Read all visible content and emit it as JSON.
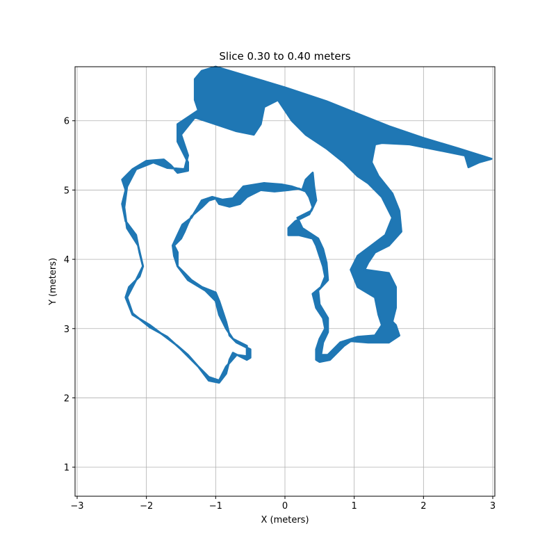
{
  "chart_data": {
    "type": "scatter",
    "title": "Slice 0.30 to 0.40 meters",
    "xlabel": "X (meters)",
    "ylabel": "Y (meters)",
    "xlim": [
      -3.03,
      3.03
    ],
    "ylim": [
      0.58,
      6.78
    ],
    "x_ticks": [
      -3,
      -2,
      -1,
      0,
      1,
      2,
      3
    ],
    "y_ticks": [
      1,
      2,
      3,
      4,
      5,
      6
    ],
    "x_tick_labels": [
      "−3",
      "−2",
      "−1",
      "0",
      "1",
      "2",
      "3"
    ],
    "y_tick_labels": [
      "1",
      "2",
      "3",
      "4",
      "5",
      "6"
    ],
    "grid": true,
    "series_color": "#1f77b4",
    "outer_contour": [
      [
        -1.0,
        6.78
      ],
      [
        -0.4,
        6.6
      ],
      [
        0.0,
        6.48
      ],
      [
        0.6,
        6.28
      ],
      [
        1.0,
        6.12
      ],
      [
        1.5,
        5.92
      ],
      [
        2.0,
        5.75
      ],
      [
        2.5,
        5.6
      ],
      [
        2.98,
        5.45
      ],
      [
        2.8,
        5.4
      ],
      [
        2.65,
        5.33
      ],
      [
        2.6,
        5.5
      ],
      [
        2.2,
        5.58
      ],
      [
        1.8,
        5.66
      ],
      [
        1.4,
        5.68
      ],
      [
        1.3,
        5.66
      ],
      [
        1.25,
        5.4
      ],
      [
        1.35,
        5.2
      ],
      [
        1.55,
        4.95
      ],
      [
        1.65,
        4.7
      ],
      [
        1.68,
        4.4
      ],
      [
        1.5,
        4.2
      ],
      [
        1.3,
        4.1
      ],
      [
        1.2,
        3.95
      ],
      [
        1.15,
        3.85
      ],
      [
        1.5,
        3.8
      ],
      [
        1.6,
        3.6
      ],
      [
        1.6,
        3.3
      ],
      [
        1.55,
        3.1
      ],
      [
        1.6,
        3.05
      ],
      [
        1.65,
        2.9
      ],
      [
        1.5,
        2.8
      ],
      [
        1.2,
        2.8
      ],
      [
        0.95,
        2.82
      ],
      [
        0.85,
        2.75
      ],
      [
        0.65,
        2.55
      ],
      [
        0.5,
        2.52
      ],
      [
        0.45,
        2.55
      ],
      [
        0.45,
        2.7
      ],
      [
        0.5,
        2.85
      ],
      [
        0.58,
        3.0
      ],
      [
        0.55,
        3.15
      ],
      [
        0.45,
        3.3
      ],
      [
        0.4,
        3.5
      ],
      [
        0.52,
        3.6
      ],
      [
        0.58,
        3.75
      ],
      [
        0.55,
        3.9
      ],
      [
        0.5,
        4.05
      ],
      [
        0.45,
        4.2
      ],
      [
        0.4,
        4.3
      ],
      [
        0.2,
        4.35
      ],
      [
        0.05,
        4.35
      ],
      [
        0.05,
        4.45
      ],
      [
        0.15,
        4.55
      ],
      [
        0.35,
        4.65
      ],
      [
        0.4,
        4.75
      ],
      [
        0.35,
        4.9
      ],
      [
        0.3,
        4.98
      ],
      [
        0.2,
        5.02
      ],
      [
        0.05,
        5.0
      ],
      [
        -0.15,
        4.98
      ],
      [
        -0.35,
        5.0
      ],
      [
        -0.55,
        4.9
      ],
      [
        -0.65,
        4.8
      ],
      [
        -0.8,
        4.76
      ],
      [
        -0.95,
        4.8
      ],
      [
        -1.0,
        4.88
      ],
      [
        -1.1,
        4.85
      ],
      [
        -1.2,
        4.75
      ],
      [
        -1.35,
        4.62
      ],
      [
        -1.4,
        4.52
      ],
      [
        -1.45,
        4.4
      ],
      [
        -1.5,
        4.3
      ],
      [
        -1.6,
        4.2
      ],
      [
        -1.55,
        4.1
      ],
      [
        -1.55,
        3.9
      ],
      [
        -1.45,
        3.8
      ],
      [
        -1.35,
        3.7
      ],
      [
        -1.2,
        3.6
      ],
      [
        -1.0,
        3.52
      ],
      [
        -0.95,
        3.4
      ],
      [
        -0.9,
        3.25
      ],
      [
        -0.85,
        3.1
      ],
      [
        -0.8,
        2.9
      ],
      [
        -0.7,
        2.8
      ],
      [
        -0.6,
        2.75
      ],
      [
        -0.5,
        2.7
      ],
      [
        -0.5,
        2.58
      ],
      [
        -0.55,
        2.55
      ],
      [
        -0.65,
        2.6
      ],
      [
        -0.75,
        2.65
      ],
      [
        -0.8,
        2.55
      ],
      [
        -0.85,
        2.35
      ],
      [
        -0.95,
        2.22
      ],
      [
        -1.1,
        2.25
      ],
      [
        -1.25,
        2.45
      ],
      [
        -1.4,
        2.62
      ],
      [
        -1.55,
        2.75
      ],
      [
        -1.75,
        2.9
      ],
      [
        -1.95,
        3.05
      ],
      [
        -2.2,
        3.2
      ],
      [
        -2.3,
        3.45
      ],
      [
        -2.25,
        3.6
      ],
      [
        -2.1,
        3.75
      ],
      [
        -2.05,
        3.9
      ],
      [
        -2.1,
        4.1
      ],
      [
        -2.15,
        4.35
      ],
      [
        -2.3,
        4.55
      ],
      [
        -2.35,
        4.8
      ],
      [
        -2.3,
        5.0
      ],
      [
        -2.35,
        5.15
      ],
      [
        -2.2,
        5.3
      ],
      [
        -2.0,
        5.42
      ],
      [
        -1.75,
        5.44
      ],
      [
        -1.65,
        5.36
      ],
      [
        -1.55,
        5.25
      ],
      [
        -1.4,
        5.28
      ],
      [
        -1.4,
        5.4
      ],
      [
        -1.55,
        5.7
      ],
      [
        -1.55,
        5.95
      ],
      [
        -1.4,
        6.05
      ],
      [
        -1.25,
        6.15
      ],
      [
        -1.3,
        6.3
      ],
      [
        -1.3,
        6.6
      ],
      [
        -1.2,
        6.72
      ],
      [
        -1.0,
        6.78
      ]
    ],
    "inner_contour": [
      [
        0.4,
        5.25
      ],
      [
        0.3,
        5.15
      ],
      [
        0.25,
        5.0
      ],
      [
        0.1,
        5.05
      ],
      [
        -0.05,
        5.08
      ],
      [
        -0.3,
        5.1
      ],
      [
        -0.6,
        5.05
      ],
      [
        -0.75,
        4.88
      ],
      [
        -0.9,
        4.86
      ],
      [
        -1.05,
        4.9
      ],
      [
        -1.2,
        4.85
      ],
      [
        -1.35,
        4.6
      ],
      [
        -1.48,
        4.5
      ],
      [
        -1.55,
        4.35
      ],
      [
        -1.62,
        4.2
      ],
      [
        -1.6,
        4.05
      ],
      [
        -1.55,
        3.9
      ],
      [
        -1.4,
        3.7
      ],
      [
        -1.15,
        3.55
      ],
      [
        -1.0,
        3.4
      ],
      [
        -0.95,
        3.2
      ],
      [
        -0.85,
        3.0
      ],
      [
        -0.75,
        2.85
      ],
      [
        -0.55,
        2.75
      ],
      [
        -0.55,
        2.6
      ],
      [
        -0.7,
        2.62
      ],
      [
        -0.85,
        2.45
      ],
      [
        -0.95,
        2.25
      ],
      [
        -1.1,
        2.3
      ],
      [
        -1.3,
        2.5
      ],
      [
        -1.5,
        2.7
      ],
      [
        -1.7,
        2.88
      ],
      [
        -1.95,
        3.02
      ],
      [
        -2.2,
        3.22
      ],
      [
        -2.28,
        3.45
      ],
      [
        -2.15,
        3.7
      ],
      [
        -2.05,
        3.9
      ],
      [
        -2.12,
        4.2
      ],
      [
        -2.28,
        4.45
      ],
      [
        -2.32,
        4.75
      ],
      [
        -2.28,
        5.05
      ],
      [
        -2.15,
        5.3
      ],
      [
        -1.9,
        5.4
      ],
      [
        -1.7,
        5.32
      ],
      [
        -1.45,
        5.3
      ],
      [
        -1.4,
        5.5
      ],
      [
        -1.5,
        5.8
      ],
      [
        -1.3,
        6.05
      ],
      [
        -1.0,
        5.95
      ],
      [
        -0.7,
        5.85
      ],
      [
        -0.45,
        5.8
      ],
      [
        -0.35,
        5.95
      ],
      [
        -0.3,
        6.2
      ],
      [
        -0.1,
        6.3
      ],
      [
        0.1,
        6.0
      ],
      [
        0.3,
        5.8
      ],
      [
        0.6,
        5.6
      ],
      [
        0.85,
        5.4
      ],
      [
        1.05,
        5.2
      ],
      [
        1.2,
        5.1
      ],
      [
        1.4,
        4.9
      ],
      [
        1.55,
        4.6
      ],
      [
        1.45,
        4.35
      ],
      [
        1.25,
        4.2
      ],
      [
        1.05,
        4.05
      ],
      [
        0.95,
        3.85
      ],
      [
        1.05,
        3.6
      ],
      [
        1.3,
        3.45
      ],
      [
        1.35,
        3.2
      ],
      [
        1.4,
        3.05
      ],
      [
        1.3,
        2.9
      ],
      [
        1.05,
        2.88
      ],
      [
        0.8,
        2.8
      ],
      [
        0.62,
        2.62
      ],
      [
        0.52,
        2.62
      ],
      [
        0.55,
        2.8
      ],
      [
        0.62,
        2.95
      ],
      [
        0.62,
        3.15
      ],
      [
        0.5,
        3.35
      ],
      [
        0.48,
        3.55
      ],
      [
        0.62,
        3.7
      ],
      [
        0.6,
        3.95
      ],
      [
        0.55,
        4.15
      ],
      [
        0.48,
        4.3
      ],
      [
        0.25,
        4.45
      ],
      [
        0.18,
        4.6
      ],
      [
        0.38,
        4.7
      ],
      [
        0.45,
        4.85
      ],
      [
        0.42,
        5.05
      ],
      [
        0.4,
        5.25
      ]
    ]
  }
}
